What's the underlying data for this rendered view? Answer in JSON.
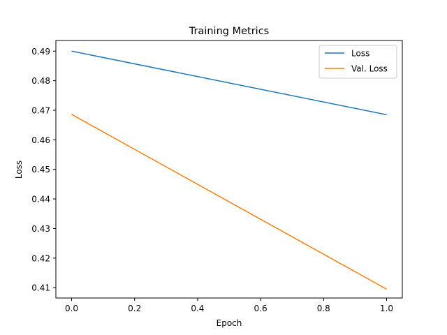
{
  "chart_data": {
    "type": "line",
    "title": "Training Metrics",
    "xlabel": "Epoch",
    "ylabel": "Loss",
    "xlim": [
      -0.05,
      1.05
    ],
    "ylim": [
      0.4065,
      0.4936
    ],
    "xticks": [
      0.0,
      0.2,
      0.4,
      0.6,
      0.8,
      1.0
    ],
    "xtick_labels": [
      "0.0",
      "0.2",
      "0.4",
      "0.6",
      "0.8",
      "1.0"
    ],
    "yticks": [
      0.41,
      0.42,
      0.43,
      0.44,
      0.45,
      0.46,
      0.47,
      0.48,
      0.49
    ],
    "ytick_labels": [
      "0.41",
      "0.42",
      "0.43",
      "0.44",
      "0.45",
      "0.46",
      "0.47",
      "0.48",
      "0.49"
    ],
    "x": [
      0,
      1
    ],
    "series": [
      {
        "name": "Loss",
        "values": [
          0.49,
          0.4685
        ],
        "color": "#1f77b4"
      },
      {
        "name": "Val. Loss",
        "values": [
          0.4686,
          0.4095
        ],
        "color": "#ff7f0e"
      }
    ],
    "grid": false,
    "legend": "top-right"
  }
}
